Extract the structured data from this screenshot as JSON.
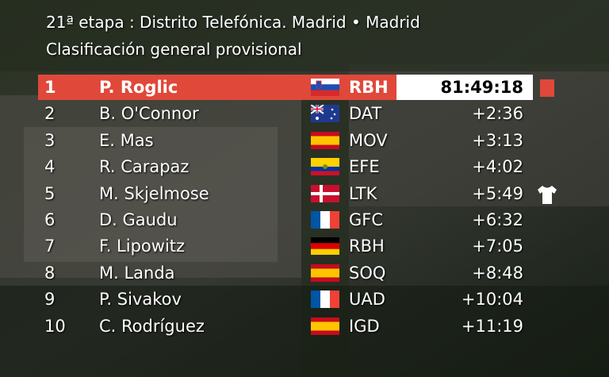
{
  "header": {
    "line1": "21ª etapa : Distrito Telefónica. Madrid • Madrid",
    "line2": "Clasificación general provisional"
  },
  "table": {
    "rows": [
      [
        "1",
        "P. Roglic",
        "RBH",
        "81:49:18"
      ],
      [
        "2",
        "B. O'Connor",
        "DAT",
        "+2:36"
      ],
      [
        "3",
        "E. Mas",
        "MOV",
        "+3:13"
      ],
      [
        "4",
        "R. Carapaz",
        "EFE",
        "+4:02"
      ],
      [
        "5",
        "M. Skjelmose",
        "LTK",
        "+5:49"
      ],
      [
        "6",
        "D. Gaudu",
        "GFC",
        "+6:32"
      ],
      [
        "7",
        "F. Lipowitz",
        "RBH",
        "+7:05"
      ],
      [
        "8",
        "M. Landa",
        "SOQ",
        "+8:48"
      ],
      [
        "9",
        "P. Sivakov",
        "UAD",
        "+10:04"
      ],
      [
        "10",
        "C. Rodríguez",
        "IGD",
        "+11:19"
      ]
    ]
  }
}
